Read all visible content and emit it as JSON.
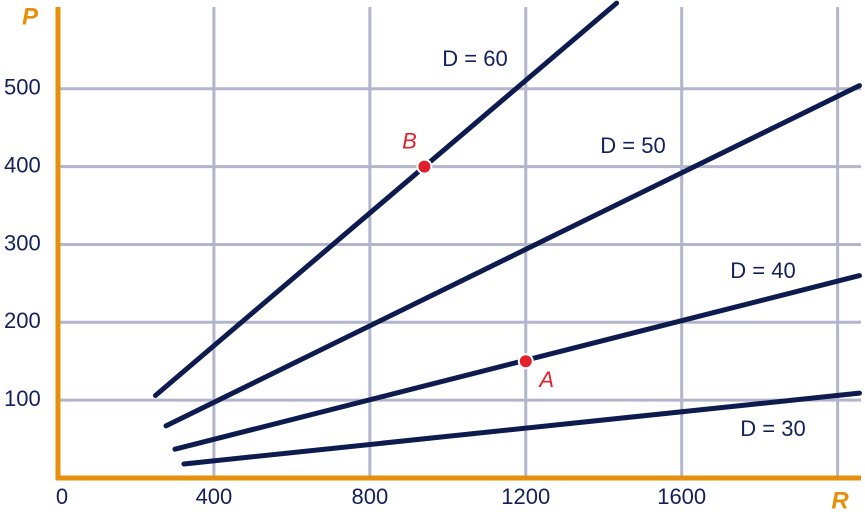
{
  "chart_data": {
    "type": "line",
    "x_label": "R",
    "y_label": "P",
    "xlim": [
      0,
      2060
    ],
    "ylim": [
      0,
      605
    ],
    "xticks": [
      0,
      400,
      800,
      1200,
      1600
    ],
    "yticks": [
      100,
      200,
      300,
      400,
      500
    ],
    "xgrid": [
      400,
      800,
      1200,
      1600,
      2000
    ],
    "ygrid": [
      100,
      200,
      300,
      400,
      500
    ],
    "grid": true,
    "grid_color": "#b3b5cd",
    "axis_color": "#e8900c",
    "series": [
      {
        "name": "D = 60",
        "color": "#0d1b4f",
        "x": [
          250,
          1433
        ],
        "values": [
          106,
          610
        ]
      },
      {
        "name": "D = 50",
        "color": "#0d1b4f",
        "x": [
          277,
          2056
        ],
        "values": [
          67,
          504
        ]
      },
      {
        "name": "D = 40",
        "color": "#0d1b4f",
        "x": [
          300,
          2056
        ],
        "values": [
          37,
          260
        ]
      },
      {
        "name": "D = 30",
        "color": "#0d1b4f",
        "x": [
          323,
          2056
        ],
        "values": [
          18,
          109
        ]
      }
    ],
    "points": [
      {
        "label": "B",
        "x": 940,
        "y": 400,
        "color": "#e0202a"
      },
      {
        "label": "A",
        "x": 1200,
        "y": 150,
        "color": "#e0202a"
      }
    ]
  }
}
